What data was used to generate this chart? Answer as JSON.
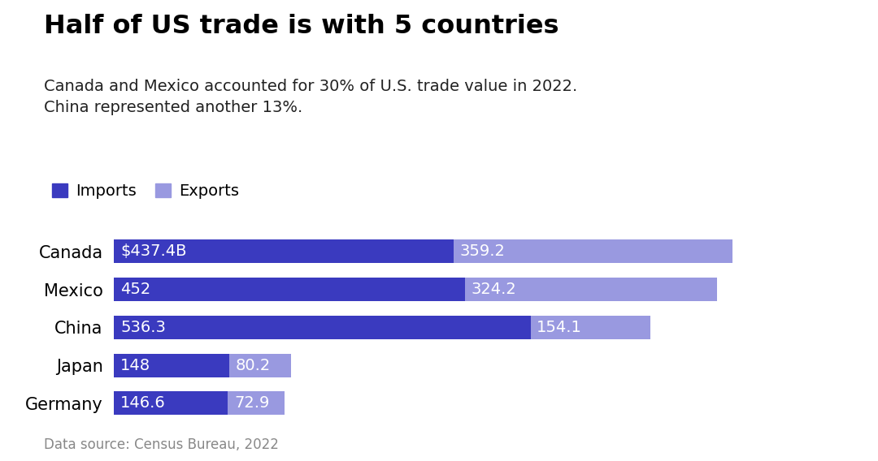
{
  "title": "Half of US trade is with 5 countries",
  "subtitle": "Canada and Mexico accounted for 30% of U.S. trade value in 2022.\nChina represented another 13%.",
  "footnote": "Data source: Census Bureau, 2022",
  "categories": [
    "Canada",
    "Mexico",
    "China",
    "Japan",
    "Germany"
  ],
  "imports": [
    437.4,
    452.0,
    536.3,
    148.0,
    146.6
  ],
  "exports": [
    359.2,
    324.2,
    154.1,
    80.2,
    72.9
  ],
  "import_labels": [
    "$437.4B",
    "452",
    "536.3",
    "148",
    "146.6"
  ],
  "export_labels": [
    "359.2",
    "324.2",
    "154.1",
    "80.2",
    "72.9"
  ],
  "import_color": "#3a3abf",
  "export_color": "#9999e0",
  "background_color": "#ffffff",
  "bar_height": 0.62,
  "xlim": [
    0,
    950
  ],
  "title_fontsize": 23,
  "subtitle_fontsize": 14,
  "label_fontsize": 14,
  "category_fontsize": 15,
  "footnote_fontsize": 12,
  "legend_fontsize": 14
}
